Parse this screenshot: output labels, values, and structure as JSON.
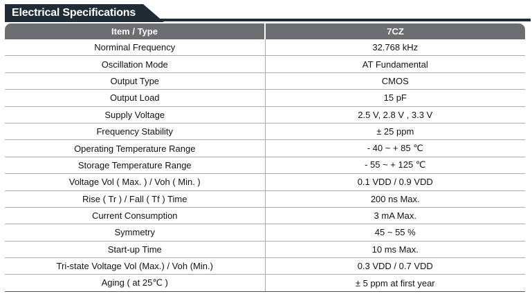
{
  "section_title": "Electrical Specifications",
  "header": {
    "param": "Item / Type",
    "value": "7CZ"
  },
  "rows": [
    {
      "param": "Norminal Frequency",
      "value": "32.768 kHz"
    },
    {
      "param": "Oscillation Mode",
      "value": "AT Fundamental"
    },
    {
      "param": "Output Type",
      "value": "CMOS"
    },
    {
      "param": "Output Load",
      "value": "15 pF"
    },
    {
      "param": "Supply Voltage",
      "value": "2.5 V, 2.8 V , 3.3 V"
    },
    {
      "param": "Frequency Stability",
      "value": "± 25 ppm"
    },
    {
      "param": "Operating Temperature Range",
      "value": "- 40 ~ + 85 ℃"
    },
    {
      "param": "Storage Temperature Range",
      "value": "- 55 ~ + 125 ℃"
    },
    {
      "param": "Voltage Vol ( Max. ) / Voh ( Min. )",
      "value": "0.1 VDD / 0.9 VDD"
    },
    {
      "param": "Rise ( Tr ) / Fall ( Tf ) Time",
      "value": "200 ns Max."
    },
    {
      "param": "Current Consumption",
      "value": "3 mA Max."
    },
    {
      "param": "Symmetry",
      "value": "45 ~ 55 %"
    },
    {
      "param": "Start-up Time",
      "value": "10 ms Max."
    },
    {
      "param": "Tri-state Voltage Vol (Max.) / Voh (Min.)",
      "value": "0.3 VDD / 0.7 VDD"
    },
    {
      "param": "Aging ( at 25℃ )",
      "value": "± 5 ppm at first year"
    }
  ]
}
